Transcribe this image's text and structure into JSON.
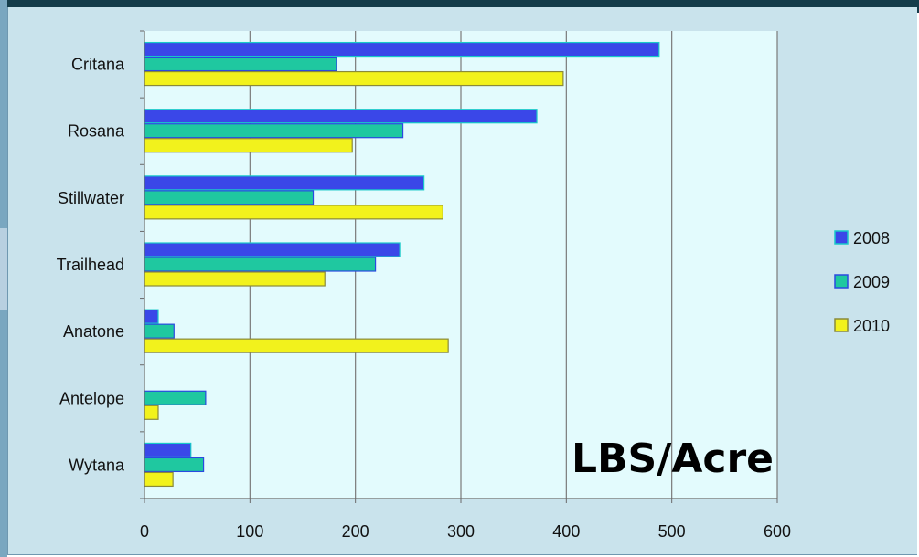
{
  "chart_data": {
    "type": "bar",
    "orientation": "horizontal",
    "categories": [
      "Critana",
      "Rosana",
      "Stillwater",
      "Trailhead",
      "Anatone",
      "Antelope",
      "Wytana"
    ],
    "series": [
      {
        "name": "2008",
        "color": "#3a47e8",
        "stroke": "#19c9c9",
        "values": [
          488,
          372,
          265,
          242,
          13,
          0,
          44
        ]
      },
      {
        "name": "2009",
        "color": "#1fc8a0",
        "stroke": "#2a4ae0",
        "values": [
          182,
          245,
          160,
          219,
          28,
          58,
          56
        ]
      },
      {
        "name": "2010",
        "color": "#f2f21c",
        "stroke": "#8a8a3a",
        "values": [
          397,
          197,
          283,
          171,
          288,
          13,
          27
        ]
      }
    ],
    "annotation": "LBS/Acre",
    "xlim": [
      0,
      600
    ],
    "xticks": [
      0,
      100,
      200,
      300,
      400,
      500,
      600
    ],
    "grid": true,
    "legend_position": "right",
    "plot_background": "#e3fbfd",
    "gridline_color": "#7a7a7a"
  }
}
